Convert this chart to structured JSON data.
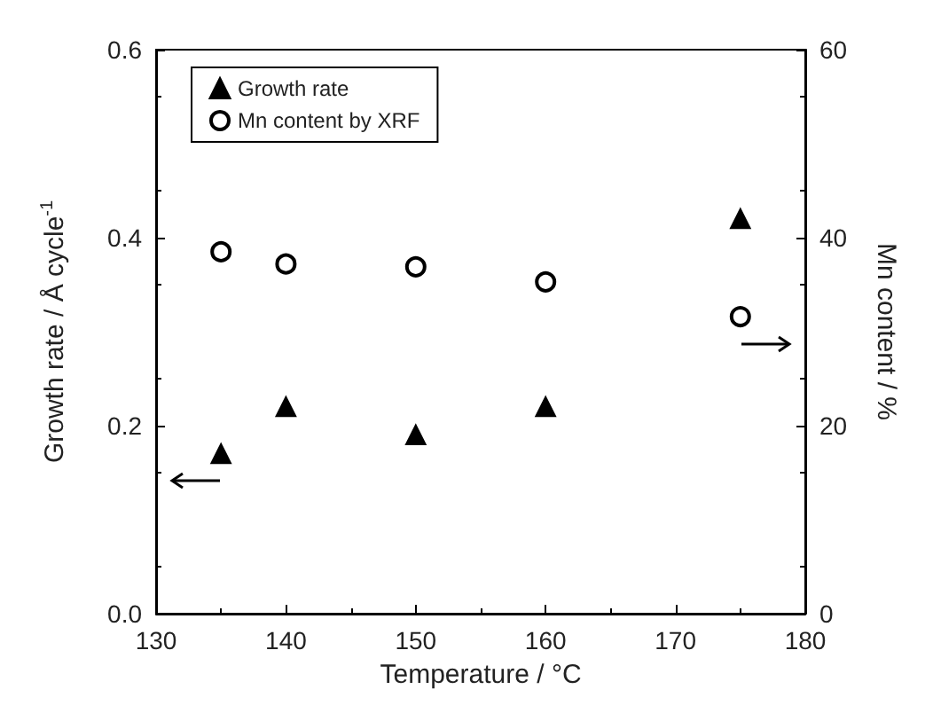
{
  "chart_data": {
    "type": "scatter",
    "xlabel": "Temperature / °C",
    "ylabel": "Growth rate / Å cycle$^{-1}$",
    "y2label": "Mn content / %",
    "x": [
      135,
      140,
      150,
      160,
      175
    ],
    "series": [
      {
        "name": "Growth rate",
        "color": "#000000",
        "marker": "triangle",
        "values": [
          0.17,
          0.22,
          0.19,
          0.22,
          0.42
        ]
      },
      {
        "name": "Mn content by XRF",
        "color": "#000000",
        "marker": "circle",
        "axis": "y2",
        "values": [
          38.5,
          37.2,
          36.9,
          35.3,
          31.6
        ]
      }
    ],
    "xlim": [
      130,
      180
    ],
    "xticks": [
      130,
      140,
      150,
      160,
      170,
      180
    ],
    "ylim": [
      0,
      0.6
    ],
    "yticks": [
      {
        "value": 0,
        "label": "0.0"
      },
      {
        "value": 0.2,
        "label": "0.2"
      },
      {
        "value": 0.4,
        "label": "0.4"
      },
      {
        "value": 0.6,
        "label": "0.6"
      }
    ],
    "y2lim": [
      0,
      60
    ],
    "y2ticks": [
      0,
      20,
      40,
      60
    ],
    "legend": "top left",
    "grid": false
  }
}
